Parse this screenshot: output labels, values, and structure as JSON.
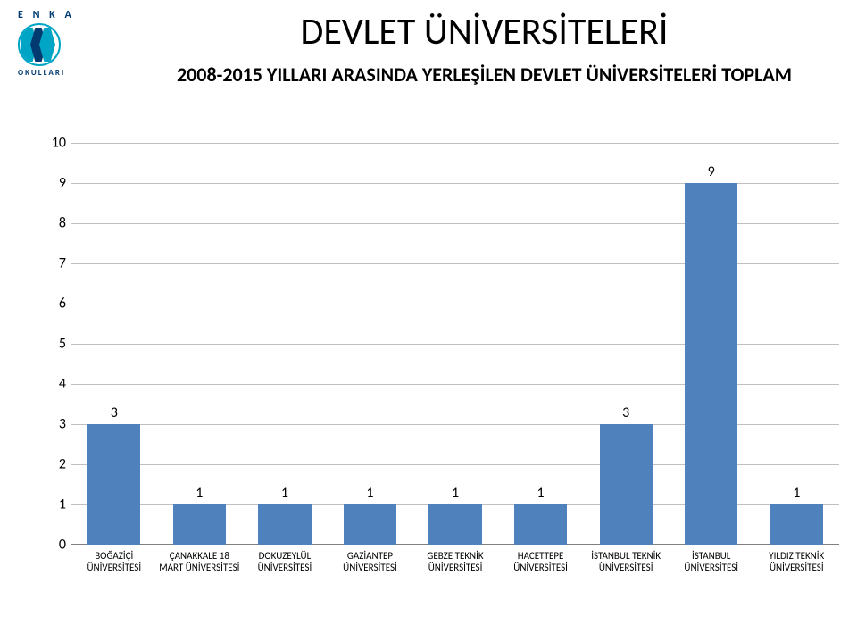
{
  "logo": {
    "top_text": "E N K A",
    "bottom_text": "OKULLARI",
    "border_color": "#00a4c4",
    "text_color": "#003a70"
  },
  "title": "DEVLET ÜNİVERSİTELERİ",
  "title_fontsize": 42,
  "title_color": "#000000",
  "subtitle": "2008-2015 YILLARI ARASINDA YERLEŞİLEN DEVLET ÜNİVERSİTELERİ TOPLAM",
  "subtitle_fontsize": 22,
  "subtitle_color": "#000000",
  "chart": {
    "type": "bar",
    "ymin": 0,
    "ymax": 10,
    "ytick_step": 1,
    "tick_fontsize": 16,
    "grid_color": "#bfbfbf",
    "axis_color": "#808080",
    "bar_color": "#4f81bd",
    "bar_width_ratio": 0.62,
    "data_label_fontsize": 16,
    "category_fontsize": 11,
    "background_color": "#ffffff",
    "categories": [
      "BOĞAZİÇİ ÜNİVERSİTESİ",
      "ÇANAKKALE 18 MART ÜNİVERSİTESİ",
      "DOKUZEYLÜL ÜNİVERSİTESİ",
      "GAZİANTEP ÜNİVERSİTESİ",
      "GEBZE TEKNİK ÜNİVERSİTESİ",
      "HACETTEPE ÜNİVERSİTESİ",
      "İSTANBUL TEKNİK ÜNİVERSİTESİ",
      "İSTANBUL ÜNİVERSİTESİ",
      "YILDIZ TEKNİK ÜNİVERSİTESİ"
    ],
    "values": [
      3,
      1,
      1,
      1,
      1,
      1,
      3,
      9,
      1
    ]
  }
}
